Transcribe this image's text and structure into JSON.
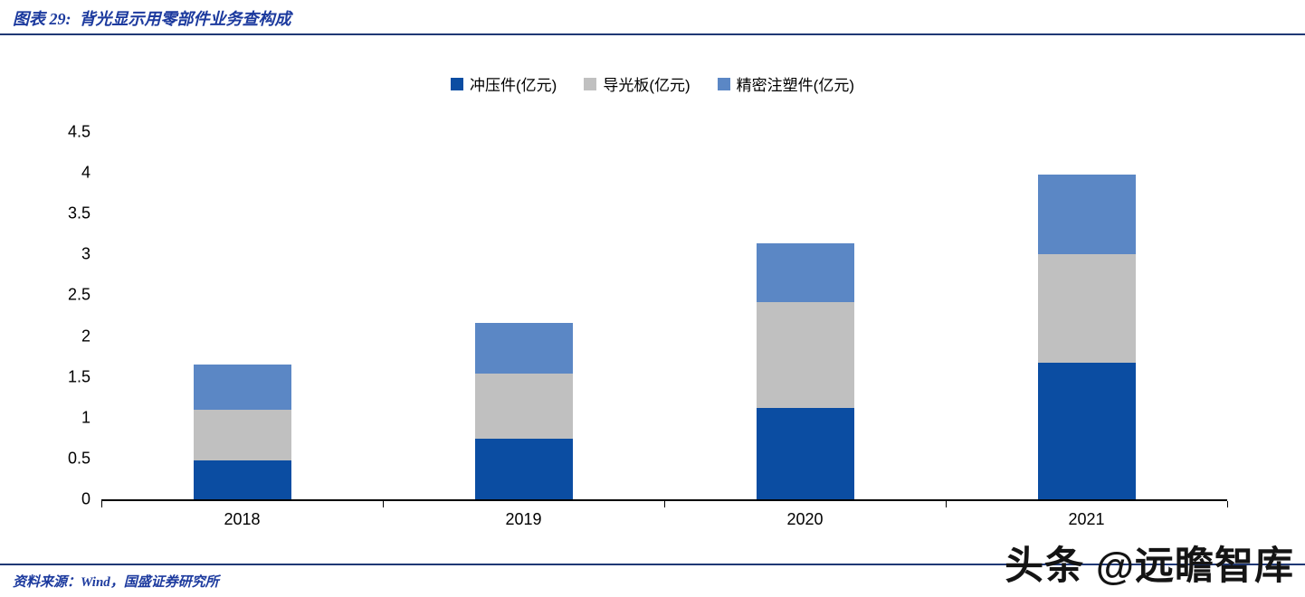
{
  "header": {
    "title": "图表 29:  背光显示用零部件业务查构成"
  },
  "chart_data": {
    "type": "bar",
    "stacked": true,
    "title": "背光显示用零部件业务查构成",
    "categories": [
      "2018",
      "2019",
      "2020",
      "2021"
    ],
    "series": [
      {
        "name": "冲压件(亿元)",
        "color": "#0b4da2",
        "values": [
          0.48,
          0.74,
          1.12,
          1.67
        ]
      },
      {
        "name": "导光板(亿元)",
        "color": "#c0c0c0",
        "values": [
          0.62,
          0.8,
          1.3,
          1.33
        ]
      },
      {
        "name": "精密注塑件(亿元)",
        "color": "#5b87c5",
        "values": [
          0.55,
          0.62,
          0.72,
          0.98
        ]
      }
    ],
    "totals": [
      1.65,
      2.16,
      3.14,
      3.98
    ],
    "xlabel": "",
    "ylabel": "",
    "ylim": [
      0,
      4.5
    ],
    "ytick_step": 0.5,
    "yticks": [
      "4.5",
      "4",
      "3.5",
      "3",
      "2.5",
      "2",
      "1.5",
      "1",
      "0.5",
      "0"
    ],
    "legend_position": "top",
    "grid": false
  },
  "footer": {
    "source": "资料来源：Wind，国盛证券研究所"
  },
  "watermark": {
    "text": "头条 @远瞻智库"
  }
}
